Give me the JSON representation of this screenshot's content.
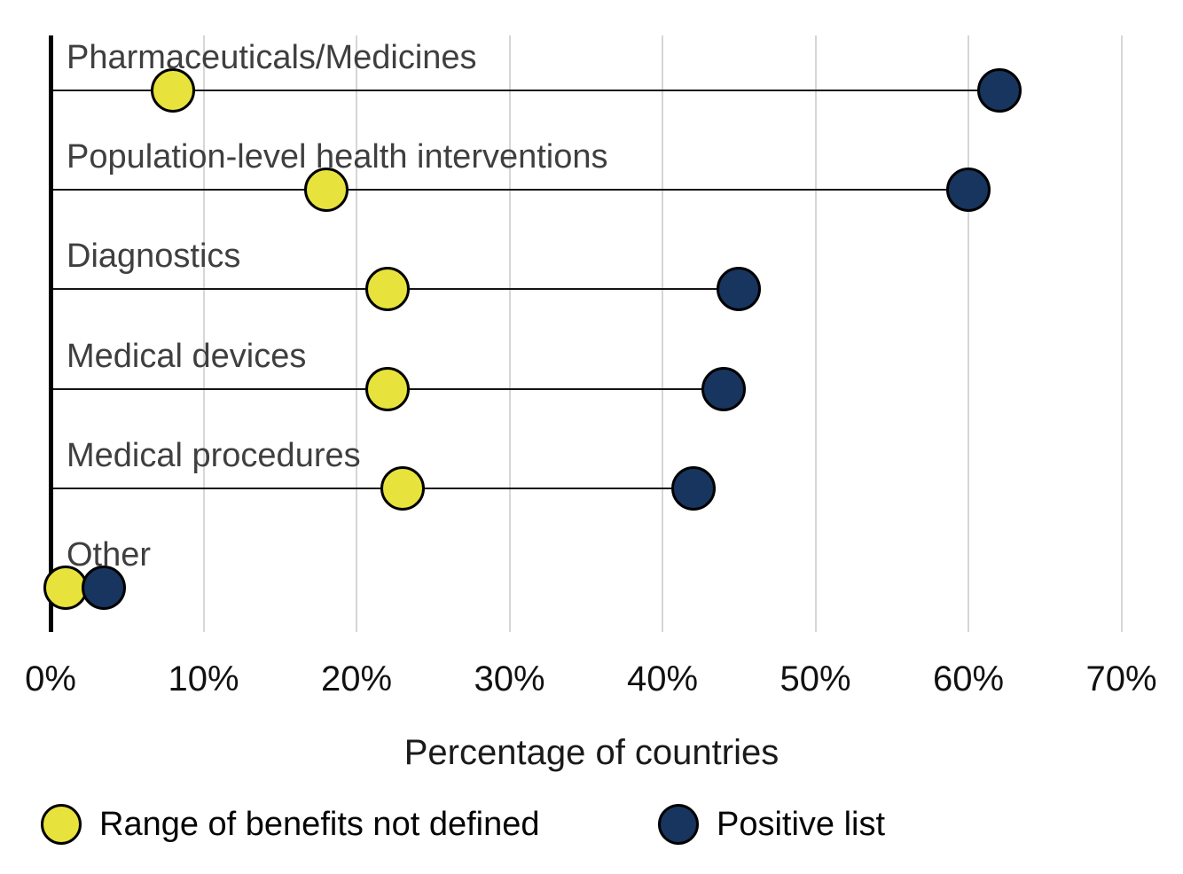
{
  "chart_data": {
    "type": "scatter",
    "subtype": "lollipop-dumbbell",
    "categories": [
      "Pharmaceuticals/Medicines",
      "Population-level health interventions",
      "Diagnostics",
      "Medical devices",
      "Medical procedures",
      "Other"
    ],
    "series": [
      {
        "name": "Range of benefits not defined",
        "color": "#E8E33C",
        "values": [
          8,
          18,
          22,
          22,
          23,
          1
        ]
      },
      {
        "name": "Positive list",
        "color": "#17355E",
        "values": [
          62,
          60,
          45,
          44,
          42,
          3.5
        ]
      }
    ],
    "xlabel": "Percentage of countries",
    "x_ticks": [
      "0%",
      "10%",
      "20%",
      "30%",
      "40%",
      "50%",
      "60%",
      "70%"
    ],
    "x_tick_values": [
      0,
      10,
      20,
      30,
      40,
      50,
      60,
      70
    ],
    "xlim": [
      0,
      70
    ],
    "grid": "vertical",
    "legend_position": "bottom",
    "marker_outline": "#000000"
  },
  "colors": {
    "background": "#FFFFFF",
    "gridline": "#D6D6D6",
    "axis_line": "#000000",
    "connector_line": "#141414",
    "category_label": "#3F3F3F",
    "tick_label": "#111111",
    "axis_title": "#1A1A1A",
    "legend_text": "#050505"
  }
}
